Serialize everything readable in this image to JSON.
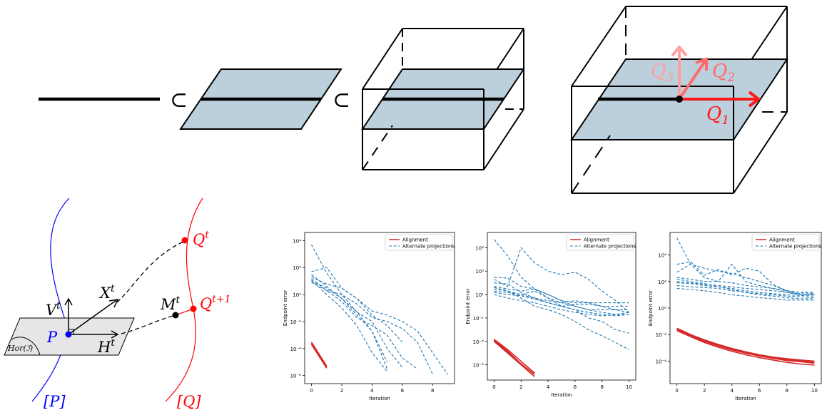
{
  "colors": {
    "plane_fill": "#bccfdc",
    "black": "#000000",
    "q1": "#ff1a1a",
    "q2": "#ff6b6b",
    "q3": "#ff9f9f",
    "blue": "#0000ff",
    "red": "#ff0000",
    "tangent_plane": "#e6e6e6",
    "alignment": "#d62728",
    "alternate": "#1f77b4"
  },
  "top_diagram": {
    "subset_symbol_1": "⊂",
    "subset_symbol_2": "⊂",
    "q1_label": "Q",
    "q1_sub": "1",
    "q2_label": "Q",
    "q2_sub": "2",
    "q3_label": "Q",
    "q3_sub": "3"
  },
  "manifold_diagram": {
    "P_label": "P",
    "Pclass_label": "[P]",
    "Qclass_label": "[Q]",
    "Qt_label": "Q",
    "Qt_sup": "t",
    "Qt1_label": "Q",
    "Qt1_sup": "t+1",
    "Mt_label": "M",
    "Mt_sup": "t",
    "Xt_label": "X",
    "Xt_sup": "t",
    "Vt_label": "V",
    "Vt_sup": "t",
    "Ht_label": "H",
    "Ht_sup": "t",
    "Hor_label": "Hor(ℐ)"
  },
  "chart_data": [
    {
      "type": "line",
      "xlabel": "Iteration",
      "ylabel": "Endpoint error",
      "yscale": "log",
      "xlim": [
        -0.45,
        9.45
      ],
      "ylim_exp": [
        -6.6,
        4.6
      ],
      "xticks": [
        0,
        2,
        4,
        6,
        8
      ],
      "yticks_exp": [
        -6,
        -4,
        -2,
        0,
        2,
        4
      ],
      "legend": {
        "position": "upper right",
        "entries": [
          "Alignment",
          "Alternate projections"
        ]
      },
      "series": [
        {
          "group": "alignment",
          "x": [
            0,
            1
          ],
          "y": [
            0.0003,
            5e-06
          ]
        },
        {
          "group": "alignment",
          "x": [
            0,
            1
          ],
          "y": [
            0.00025,
            4e-06
          ]
        },
        {
          "group": "alignment",
          "x": [
            0,
            1
          ],
          "y": [
            0.0002,
            3.5e-06
          ]
        },
        {
          "group": "alternate",
          "x": [
            0,
            1,
            2,
            3,
            4,
            5
          ],
          "y": [
            5000,
            40,
            1,
            0.05,
            0.002,
            1e-05
          ]
        },
        {
          "group": "alternate",
          "x": [
            0,
            1,
            2,
            3,
            4,
            5,
            6
          ],
          "y": [
            50,
            100,
            3,
            0.5,
            0.03,
            0.005,
            0.0003
          ]
        },
        {
          "group": "alternate",
          "x": [
            0,
            1,
            2,
            3,
            4,
            5,
            6,
            7,
            8,
            9
          ],
          "y": [
            20,
            6,
            3,
            0.5,
            0.06,
            0.03,
            0.01,
            0.002,
            5e-05,
            1.2e-06
          ]
        },
        {
          "group": "alternate",
          "x": [
            0,
            1,
            2,
            3,
            4,
            5,
            6
          ],
          "y": [
            10,
            3,
            0.5,
            0.05,
            0.01,
            0.0001,
            4e-06
          ]
        },
        {
          "group": "alternate",
          "x": [
            0,
            1,
            2,
            3,
            4,
            5,
            6,
            7,
            8
          ],
          "y": [
            15,
            2,
            1,
            0.2,
            0.02,
            0.01,
            0.003,
            0.0003,
            1.3e-06
          ]
        },
        {
          "group": "alternate",
          "x": [
            0,
            1,
            2,
            3,
            4,
            5,
            6,
            7
          ],
          "y": [
            8,
            2,
            0.3,
            0.02,
            0.005,
            0.001,
            2e-05,
            3e-06
          ]
        },
        {
          "group": "alternate",
          "x": [
            0,
            1,
            2,
            3,
            4,
            5
          ],
          "y": [
            30,
            4,
            0.5,
            0.03,
            0.002,
            3e-06
          ]
        },
        {
          "group": "alternate",
          "x": [
            0,
            1,
            2,
            3,
            4,
            5
          ],
          "y": [
            12,
            1,
            0.1,
            0.005,
            5e-05,
            2e-06
          ]
        }
      ]
    },
    {
      "type": "line",
      "xlabel": "Iteration",
      "ylabel": "Endpoint error",
      "yscale": "log",
      "xlim": [
        -0.5,
        10.5
      ],
      "ylim_exp": [
        -6.3,
        6.3
      ],
      "xticks": [
        0,
        2,
        4,
        6,
        8,
        10
      ],
      "yticks_exp": [
        -5,
        -3,
        -1,
        1,
        3,
        5
      ],
      "legend": {
        "position": "upper right",
        "entries": [
          "Alignment",
          "Alternate projections"
        ]
      },
      "series": [
        {
          "group": "alignment",
          "x": [
            0,
            1,
            2,
            3
          ],
          "y": [
            0.0015,
            0.0002,
            2e-05,
            2e-06
          ]
        },
        {
          "group": "alignment",
          "x": [
            0,
            1,
            2,
            3
          ],
          "y": [
            0.0012,
            0.00015,
            1.2e-05,
            1.5e-06
          ]
        },
        {
          "group": "alignment",
          "x": [
            0,
            1,
            2,
            3
          ],
          "y": [
            0.001,
            0.0001,
            1e-05,
            1e-06
          ]
        },
        {
          "group": "alignment",
          "x": [
            0,
            1,
            2
          ],
          "y": [
            0.0013,
            0.00012,
            1e-05
          ]
        },
        {
          "group": "alternate",
          "x": [
            0,
            1,
            2,
            3,
            4,
            5,
            6,
            7,
            8,
            9,
            10
          ],
          "y": [
            500000,
            20000,
            300,
            30,
            5,
            1,
            0.5,
            0.3,
            0.2,
            0.15,
            0.2
          ]
        },
        {
          "group": "alternate",
          "x": [
            0,
            1,
            2,
            3,
            4,
            5,
            6,
            7,
            8,
            9,
            10
          ],
          "y": [
            200,
            50,
            100000,
            5000,
            1000,
            500,
            800,
            200,
            20,
            3,
            0.3
          ]
        },
        {
          "group": "alternate",
          "x": [
            0,
            1,
            2,
            3,
            4,
            5,
            6,
            7,
            8,
            9,
            10
          ],
          "y": [
            300,
            250,
            50,
            30,
            10,
            3,
            1,
            0.5,
            0.3,
            0.2,
            0.3
          ]
        },
        {
          "group": "alternate",
          "x": [
            0,
            1,
            2,
            3,
            4,
            5,
            6,
            7,
            8,
            9,
            10
          ],
          "y": [
            50,
            30,
            20,
            30,
            10,
            3,
            2,
            2,
            1,
            1,
            1
          ]
        },
        {
          "group": "alternate",
          "x": [
            0,
            1,
            2,
            3,
            4,
            5,
            6,
            7,
            8,
            9,
            10
          ],
          "y": [
            30,
            20,
            10,
            5,
            3,
            2,
            3,
            2,
            2,
            2,
            2
          ]
        },
        {
          "group": "alternate",
          "x": [
            0,
            1,
            2,
            3,
            4,
            5,
            6,
            7,
            8,
            9,
            10
          ],
          "y": [
            20,
            15,
            10,
            20,
            5,
            2,
            1,
            0.5,
            0.5,
            0.5,
            0.5
          ]
        },
        {
          "group": "alternate",
          "x": [
            0,
            1,
            2,
            3,
            4,
            5,
            6,
            7,
            8,
            9,
            10
          ],
          "y": [
            15,
            10,
            8,
            4,
            2,
            1,
            1.5,
            1.5,
            1,
            0.5,
            0.3
          ]
        },
        {
          "group": "alternate",
          "x": [
            0,
            1,
            2,
            3,
            4,
            5,
            6,
            7,
            8,
            9,
            10
          ],
          "y": [
            10,
            5,
            3,
            2,
            1,
            0.5,
            0.3,
            0.2,
            0.15,
            0.2,
            0.2
          ]
        },
        {
          "group": "alternate",
          "x": [
            0,
            1,
            2,
            3,
            4,
            5,
            6,
            7,
            8,
            9,
            10
          ],
          "y": [
            40,
            20,
            5,
            1,
            0.5,
            0.2,
            0.05,
            0.01,
            0.003,
            0.0008,
            0.0002
          ]
        },
        {
          "group": "alternate",
          "x": [
            0,
            1,
            2,
            3,
            4,
            5,
            6,
            7,
            8,
            9,
            10
          ],
          "y": [
            100,
            80,
            15,
            5,
            2,
            1,
            0.5,
            0.1,
            0.05,
            0.01,
            0.005
          ]
        }
      ]
    },
    {
      "type": "line",
      "xlabel": "Iteration",
      "ylabel": "Endpoint error",
      "yscale": "log",
      "xlim": [
        -0.5,
        10.5
      ],
      "ylim_exp": [
        -5.7,
        5.7
      ],
      "xticks": [
        0,
        2,
        4,
        6,
        8,
        10
      ],
      "yticks_exp": [
        -4,
        -2,
        0,
        2,
        4
      ],
      "legend": {
        "position": "upper right",
        "entries": [
          "Alignment",
          "Alternate projections"
        ]
      },
      "series": [
        {
          "group": "alignment",
          "x": [
            0,
            1,
            2,
            3,
            4,
            5,
            6,
            7,
            8,
            9,
            10
          ],
          "y": [
            0.03,
            0.01,
            0.004,
            0.0018,
            0.0009,
            0.0005,
            0.0003,
            0.0002,
            0.00015,
            0.00012,
            0.0001
          ]
        },
        {
          "group": "alignment",
          "x": [
            0,
            1,
            2,
            3,
            4,
            5,
            6,
            7,
            8,
            9,
            10
          ],
          "y": [
            0.025,
            0.008,
            0.003,
            0.0014,
            0.0007,
            0.0004,
            0.00024,
            0.00016,
            0.00011,
            9e-05,
            7e-05
          ]
        },
        {
          "group": "alignment",
          "x": [
            0,
            1,
            2,
            3,
            4,
            5,
            6,
            7,
            8,
            9,
            10
          ],
          "y": [
            0.02,
            0.007,
            0.0025,
            0.0011,
            0.00055,
            0.0003,
            0.00018,
            0.00012,
            8e-05,
            6e-05,
            5e-05
          ]
        },
        {
          "group": "alignment",
          "x": [
            0,
            1,
            2,
            3,
            4,
            5,
            6,
            7,
            8,
            9,
            10
          ],
          "y": [
            0.028,
            0.009,
            0.0035,
            0.0016,
            0.0008,
            0.00045,
            0.00027,
            0.00018,
            0.00013,
            0.0001,
            8e-05
          ]
        },
        {
          "group": "alternate",
          "x": [
            0,
            1,
            2,
            3,
            4,
            5,
            6,
            7,
            8,
            9,
            10
          ],
          "y": [
            200000,
            2000,
            1000,
            600,
            400,
            200,
            100,
            50,
            20,
            15,
            15
          ]
        },
        {
          "group": "alternate",
          "x": [
            0,
            1,
            2,
            3,
            4,
            5,
            6,
            7,
            8,
            9,
            10
          ],
          "y": [
            2000,
            3000,
            300,
            800,
            300,
            1000,
            600,
            60,
            20,
            10,
            10
          ]
        },
        {
          "group": "alternate",
          "x": [
            0,
            1,
            2,
            3,
            4,
            5,
            6,
            7,
            8,
            9,
            10
          ],
          "y": [
            500,
            2000,
            200,
            100,
            2000,
            100,
            50,
            30,
            15,
            10,
            10
          ]
        },
        {
          "group": "alternate",
          "x": [
            0,
            1,
            2,
            3,
            4,
            5,
            6,
            7,
            8,
            9,
            10
          ],
          "y": [
            200,
            150,
            100,
            100,
            80,
            50,
            40,
            30,
            20,
            15,
            12
          ]
        },
        {
          "group": "alternate",
          "x": [
            0,
            1,
            2,
            3,
            4,
            5,
            6,
            7,
            8,
            9,
            10
          ],
          "y": [
            100,
            80,
            60,
            50,
            40,
            30,
            25,
            20,
            15,
            12,
            10
          ]
        },
        {
          "group": "alternate",
          "x": [
            0,
            1,
            2,
            3,
            4,
            5,
            6,
            7,
            8,
            9,
            10
          ],
          "y": [
            80,
            70,
            50,
            40,
            30,
            20,
            15,
            12,
            10,
            9,
            8
          ]
        },
        {
          "group": "alternate",
          "x": [
            0,
            1,
            2,
            3,
            4,
            5,
            6,
            7,
            8,
            9,
            10
          ],
          "y": [
            50,
            40,
            35,
            30,
            20,
            15,
            12,
            10,
            8,
            7,
            6
          ]
        },
        {
          "group": "alternate",
          "x": [
            0,
            1,
            2,
            3,
            4,
            5,
            6,
            7,
            8,
            9,
            10
          ],
          "y": [
            150,
            100,
            70,
            40,
            25,
            15,
            10,
            8,
            6,
            5,
            5
          ]
        },
        {
          "group": "alternate",
          "x": [
            0,
            1,
            2,
            3,
            4,
            5,
            6,
            7,
            8,
            9,
            10
          ],
          "y": [
            30,
            25,
            20,
            15,
            10,
            8,
            6,
            5,
            4,
            4,
            4
          ]
        }
      ]
    }
  ]
}
